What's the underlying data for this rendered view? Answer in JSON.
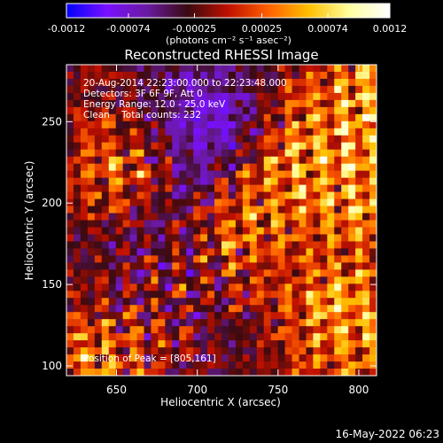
{
  "chart_data": {
    "type": "heatmap",
    "title": "Reconstructed RHESSI Image",
    "xlabel": "Heliocentric X (arcsec)",
    "ylabel": "Heliocentric Y (arcsec)",
    "xlim": [
      619,
      811
    ],
    "ylim": [
      94,
      285
    ],
    "x_ticks": [
      650,
      700,
      750,
      800
    ],
    "y_ticks": [
      100,
      150,
      200,
      250
    ],
    "colorbar": {
      "range": [
        -0.0012,
        0.0012
      ],
      "tick_values": [
        -0.0012,
        -0.00074,
        -0.00025,
        0.00025,
        0.00074,
        0.0012
      ],
      "tick_labels": [
        "-0.0012",
        "-0.00074",
        "-0.00025",
        "0.00025",
        "0.00074",
        "0.0012"
      ],
      "units_label": "(photons cm⁻² s⁻¹ asec⁻²)",
      "colors": [
        "#0000ff",
        "#7a10ff",
        "#6a1aa0",
        "#3a0a10",
        "#c01000",
        "#ff6000",
        "#ffc000",
        "#ffffa0",
        "#ffffff"
      ]
    },
    "annotations": [
      "20-Aug-2014 22:23:00.000 to 22:23:48.000",
      "Detectors: 3F 6F 9F, Att 0",
      "Energy Range: 12.0 - 25.0 keV",
      "Clean    Total counts: 232"
    ],
    "peak_label": "Position of Peak = [805,161]",
    "grid": false
  },
  "timestamp": "16-May-2022 06:23"
}
